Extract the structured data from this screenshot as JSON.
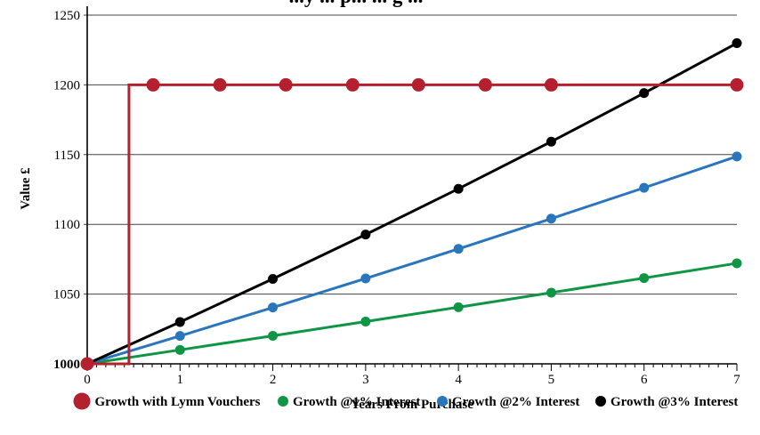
{
  "chart_data": {
    "type": "line",
    "title": "...y ... p... ... g ...",
    "xlabel": "Years From Purchase",
    "ylabel": "Value £",
    "xlim": [
      0,
      7
    ],
    "ylim": [
      1000,
      1250
    ],
    "x_ticks": [
      "0",
      "1",
      "2",
      "3",
      "4",
      "5",
      "6",
      "7"
    ],
    "y_ticks": [
      "1000",
      "1050",
      "1100",
      "1150",
      "1200",
      "1250"
    ],
    "grid": "horizontal",
    "legend_position": "bottom",
    "series": [
      {
        "name": "Growth with Lymn Vouchers",
        "color": "#b5202e",
        "step": true,
        "step_x": 0.45,
        "x": [
          0,
          0.71,
          1.43,
          2.14,
          2.86,
          3.57,
          4.29,
          5.0,
          7.0
        ],
        "y": [
          1000,
          1200,
          1200,
          1200,
          1200,
          1200,
          1200,
          1200,
          1200
        ]
      },
      {
        "name": "Growth @1% Interest",
        "color": "#0f9645",
        "x": [
          0,
          1,
          2,
          3,
          4,
          5,
          6,
          7
        ],
        "y": [
          1000,
          1010,
          1020.1,
          1030.3,
          1040.6,
          1051,
          1061.5,
          1072.1
        ]
      },
      {
        "name": "Growth @2% Interest",
        "color": "#2a76bc",
        "x": [
          0,
          1,
          2,
          3,
          4,
          5,
          6,
          7
        ],
        "y": [
          1000,
          1020,
          1040.4,
          1061.2,
          1082.4,
          1104.1,
          1126.2,
          1148.7
        ]
      },
      {
        "name": "Growth @3% Interest",
        "color": "#000000",
        "x": [
          0,
          1,
          2,
          3,
          4,
          5,
          6,
          7
        ],
        "y": [
          1000,
          1030,
          1060.9,
          1092.7,
          1125.5,
          1159.3,
          1194.1,
          1229.9
        ]
      }
    ]
  }
}
